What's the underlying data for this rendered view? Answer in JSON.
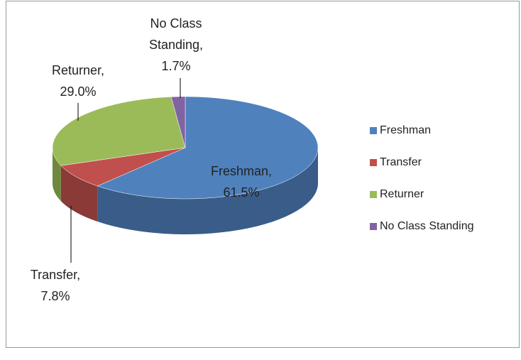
{
  "chart_data": {
    "type": "pie",
    "categories": [
      "Freshman",
      "Transfer",
      "Returner",
      "No Class Standing"
    ],
    "values": [
      61.5,
      7.8,
      29.0,
      1.7
    ],
    "value_labels": [
      "61.5%",
      "7.8%",
      "29.0%",
      "1.7%"
    ],
    "label_names": [
      [
        "Freshman,"
      ],
      [
        "Transfer,"
      ],
      [
        "Returner,"
      ],
      [
        "No Class",
        "Standing,"
      ]
    ],
    "colors": [
      "#4f81bd",
      "#c0504d",
      "#9bbb59",
      "#8064a2"
    ],
    "legend": "right"
  }
}
